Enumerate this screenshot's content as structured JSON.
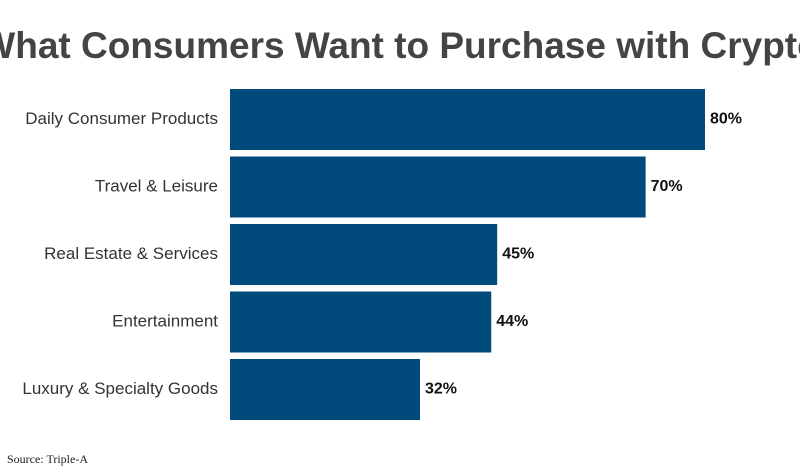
{
  "chart_data": {
    "type": "bar",
    "orientation": "horizontal",
    "title": "What Consumers Want to Purchase with Crypto",
    "categories": [
      "Daily Consumer Products",
      "Travel & Leisure",
      "Real Estate & Services",
      "Entertainment",
      "Luxury & Specialty Goods"
    ],
    "values": [
      80,
      70,
      45,
      44,
      32
    ],
    "value_labels": [
      "80%",
      "70%",
      "45%",
      "44%",
      "32%"
    ],
    "color": "#004a7c",
    "source": "Source: Triple-A"
  }
}
